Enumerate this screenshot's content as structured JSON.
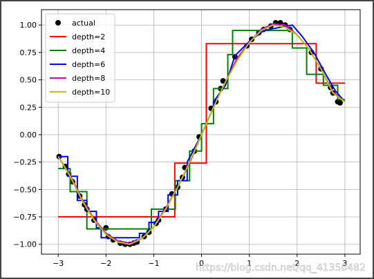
{
  "chart_data": {
    "type": "line",
    "legend": "upper left",
    "grid": true,
    "xlim": [
      -3.35,
      3.32
    ],
    "ylim": [
      -1.09,
      1.14
    ],
    "xticks": [
      {
        "value": -3,
        "label": "−3"
      },
      {
        "value": -2,
        "label": "−2"
      },
      {
        "value": -1,
        "label": "−1"
      },
      0,
      1,
      2,
      3
    ],
    "yticks": [
      {
        "value": -1,
        "label": "−1.00"
      },
      {
        "value": -0.75,
        "label": "−0.75"
      },
      {
        "value": -0.5,
        "label": "−0.50"
      },
      {
        "value": -0.25,
        "label": "−0.25"
      },
      {
        "value": 0,
        "label": "0.00"
      },
      {
        "value": 0.25,
        "label": "0.25"
      },
      {
        "value": 0.5,
        "label": "0.50"
      },
      {
        "value": 0.75,
        "label": "0.75"
      },
      {
        "value": 1,
        "label": "1.00"
      }
    ],
    "watermark": "https://blog.csdn.net/qq_41350482",
    "series": [
      {
        "name": "actual",
        "color": "#000000",
        "mode": "markers",
        "x": [
          -2.98,
          -2.85,
          -2.78,
          -2.7,
          -2.55,
          -2.45,
          -2.4,
          -2.25,
          -2.0,
          -1.95,
          -1.85,
          -1.7,
          -1.6,
          -1.5,
          -1.42,
          -1.35,
          -1.2,
          -1.1,
          -0.95,
          -0.9,
          -0.75,
          -0.62,
          -0.5,
          -0.4,
          -0.35,
          -0.15,
          -0.05,
          0.2,
          0.3,
          0.4,
          0.45,
          0.7,
          0.95,
          1.05,
          1.2,
          1.3,
          1.45,
          1.55,
          1.65,
          1.75,
          1.85,
          2.3,
          2.5,
          2.7,
          2.75,
          2.85,
          2.9
        ],
        "values": [
          -0.2,
          -0.29,
          -0.36,
          -0.43,
          -0.56,
          -0.64,
          -0.68,
          -0.78,
          -0.85,
          -0.93,
          -0.96,
          -0.99,
          -1.0,
          -1.0,
          -0.99,
          -0.98,
          -0.93,
          -0.89,
          -0.81,
          -0.78,
          -0.68,
          -0.54,
          -0.48,
          -0.39,
          -0.3,
          -0.15,
          -0.02,
          0.24,
          0.3,
          0.42,
          0.49,
          0.71,
          0.81,
          0.87,
          0.93,
          0.96,
          0.99,
          1.02,
          1.02,
          1.0,
          0.96,
          0.75,
          0.6,
          0.43,
          0.38,
          0.3,
          0.29
        ]
      },
      {
        "name": "depth=2",
        "color": "#ff0000",
        "mode": "line",
        "x": [
          -3,
          -0.56,
          -0.56,
          0.1,
          0.1,
          2.4,
          2.4,
          3
        ],
        "values": [
          -0.75,
          -0.75,
          -0.26,
          -0.26,
          0.83,
          0.83,
          0.47,
          0.47
        ]
      },
      {
        "name": "depth=4",
        "color": "#008000",
        "mode": "line",
        "x": [
          -3,
          -2.75,
          -2.75,
          -2.4,
          -2.4,
          -1.05,
          -1.05,
          -0.55,
          -0.55,
          -0.25,
          -0.25,
          0,
          0,
          0.25,
          0.25,
          0.55,
          0.55,
          0.65,
          0.65,
          1.9,
          1.9,
          2.2,
          2.2,
          2.55,
          2.55,
          2.85,
          2.85,
          3
        ],
        "values": [
          -0.31,
          -0.31,
          -0.52,
          -0.52,
          -0.86,
          -0.86,
          -0.68,
          -0.68,
          -0.42,
          -0.42,
          -0.15,
          -0.15,
          0.1,
          0.1,
          0.42,
          0.42,
          0.73,
          0.73,
          0.95,
          0.95,
          0.79,
          0.79,
          0.55,
          0.55,
          0.45,
          0.45,
          0.32,
          0.32
        ]
      },
      {
        "name": "depth=6",
        "color": "#0000ff",
        "mode": "line",
        "x": [
          -3,
          -2.8,
          -2.8,
          -2.6,
          -2.6,
          -2.4,
          -2.4,
          -2.2,
          -2.2,
          -2.1,
          -2.1,
          -1.3,
          -1.3,
          -1.1,
          -1.1,
          -0.9,
          -0.9,
          -0.7,
          -0.7,
          -0.5,
          -0.5,
          -0.3,
          -0.3,
          0,
          0.25,
          0.25,
          0.5,
          0.5,
          0.7,
          0.7,
          1.0,
          1.0,
          1.3,
          1.3,
          1.9,
          1.9,
          2.1,
          2.1,
          2.35,
          2.35,
          2.6,
          2.6,
          2.8,
          2.8,
          3
        ],
        "values": [
          -0.2,
          -0.2,
          -0.38,
          -0.38,
          -0.6,
          -0.6,
          -0.7,
          -0.7,
          -0.85,
          -0.85,
          -0.94,
          -0.94,
          -0.9,
          -0.9,
          -0.8,
          -0.8,
          -0.7,
          -0.7,
          -0.55,
          -0.55,
          -0.42,
          -0.42,
          -0.25,
          0.0,
          0.25,
          0.3,
          0.45,
          0.45,
          0.72,
          0.72,
          0.85,
          0.85,
          0.95,
          0.95,
          1.0,
          1.0,
          0.9,
          0.9,
          0.75,
          0.75,
          0.55,
          0.55,
          0.4,
          0.4,
          0.3
        ]
      },
      {
        "name": "depth=8",
        "color": "#bf00bf",
        "mode": "line",
        "x": [
          -3,
          -2.75,
          -2.5,
          -2.25,
          -2,
          -1.75,
          -1.5,
          -1.25,
          -1,
          -0.75,
          -0.5,
          -0.25,
          0,
          0.25,
          0.5,
          0.75,
          1,
          1.25,
          1.5,
          1.75,
          2,
          2.25,
          2.5,
          2.75,
          3
        ],
        "values": [
          -0.2,
          -0.37,
          -0.59,
          -0.77,
          -0.9,
          -0.97,
          -0.99,
          -0.95,
          -0.84,
          -0.67,
          -0.48,
          -0.26,
          0.0,
          0.25,
          0.48,
          0.7,
          0.84,
          0.96,
          1.01,
          1.0,
          0.91,
          0.78,
          0.6,
          0.39,
          0.3
        ]
      },
      {
        "name": "depth=10",
        "color": "#bfbf00",
        "mode": "line",
        "x": [
          -3,
          -2.75,
          -2.5,
          -2.25,
          -2,
          -1.75,
          -1.5,
          -1.25,
          -1,
          -0.75,
          -0.5,
          -0.25,
          0,
          0.25,
          0.5,
          0.75,
          1,
          1.25,
          1.5,
          1.75,
          2,
          2.25,
          2.5,
          2.75,
          3
        ],
        "values": [
          -0.2,
          -0.38,
          -0.6,
          -0.78,
          -0.91,
          -0.98,
          -1.0,
          -0.95,
          -0.84,
          -0.68,
          -0.48,
          -0.25,
          0.0,
          0.25,
          0.48,
          0.68,
          0.84,
          0.95,
          1.0,
          0.98,
          0.91,
          0.78,
          0.6,
          0.38,
          0.3
        ]
      }
    ]
  }
}
